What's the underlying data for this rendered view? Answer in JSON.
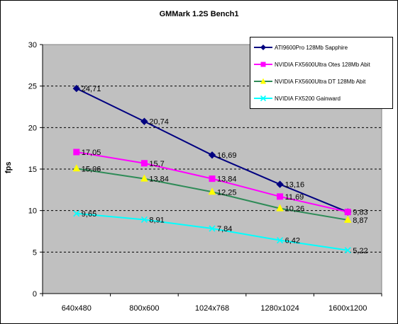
{
  "chart_data": {
    "type": "line",
    "title": "GMMark 1.2S Bench1",
    "xlabel": "",
    "ylabel": "fps",
    "categories": [
      "640x480",
      "800x600",
      "1024x768",
      "1280x1024",
      "1600x1200"
    ],
    "ylim": [
      0,
      30
    ],
    "yticks": [
      "0",
      "5",
      "10",
      "15",
      "20",
      "25",
      "30"
    ],
    "grid": true,
    "legend_position": "top-right",
    "series": [
      {
        "name": "ATI9600Pro 128Mb Sapphire",
        "color": "#000080",
        "marker": "diamond",
        "values": [
          24.71,
          20.74,
          16.69,
          13.16,
          9.83
        ],
        "labels": [
          "24,71",
          "20,74",
          "16,69",
          "13,16",
          "9,83"
        ]
      },
      {
        "name": "NVIDIA FX5600Ultra Otes 128Mb Abit",
        "color": "#FF00FF",
        "marker": "square",
        "values": [
          17.05,
          15.7,
          13.84,
          11.69,
          9.83
        ],
        "labels": [
          "17,05",
          "15,7",
          "13,84",
          "11,69",
          ""
        ]
      },
      {
        "name": "NVIDIA FX5600Ultra DT 128Mb Abit",
        "color": "#2E8B57",
        "markerColor": "#FFFF00",
        "marker": "triangle",
        "values": [
          15.06,
          13.84,
          12.25,
          10.26,
          8.87
        ],
        "labels": [
          "15,06",
          "13,84",
          "12,25",
          "10,26",
          "8,87"
        ]
      },
      {
        "name": "NVIDIA FX5200 Gainward",
        "color": "#00FFFF",
        "marker": "x",
        "values": [
          9.65,
          8.91,
          7.84,
          6.42,
          5.22
        ],
        "labels": [
          "9,65",
          "8,91",
          "7,84",
          "6,42",
          "5,22"
        ]
      }
    ]
  },
  "colors": {
    "plot_background": "#C0C0C0",
    "grid": "#000000"
  }
}
